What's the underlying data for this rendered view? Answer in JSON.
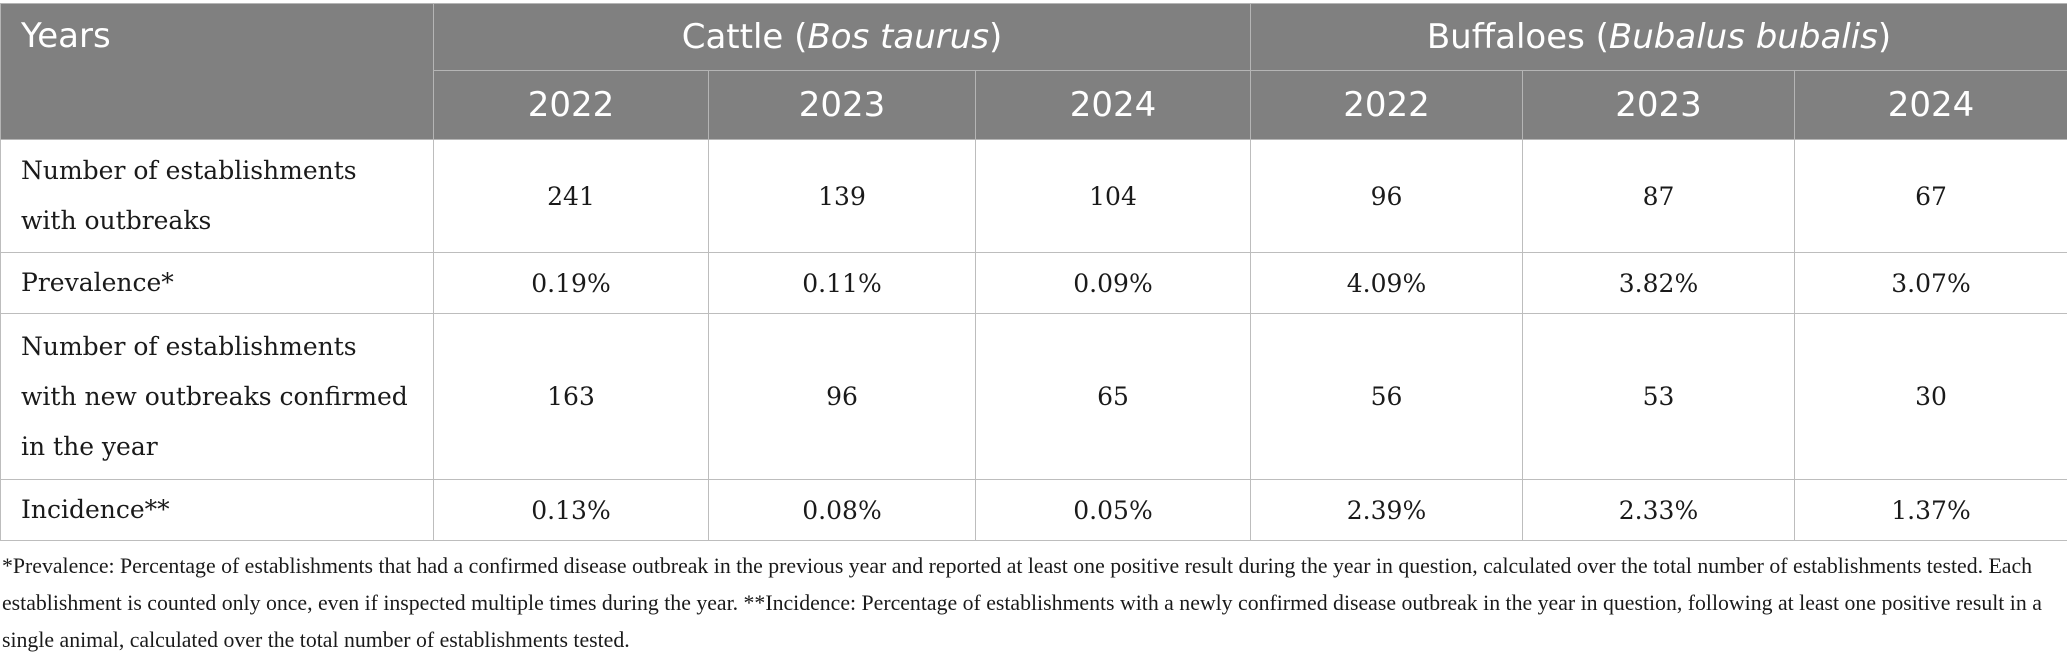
{
  "header": {
    "years_label": "Years",
    "cattle": {
      "prefix": "Cattle (",
      "latin": "Bos taurus",
      "suffix": ")"
    },
    "buffaloes": {
      "prefix": "Buffaloes (",
      "latin": "Bubalus bubalis",
      "suffix": ")"
    },
    "year_columns": [
      "2022",
      "2023",
      "2024",
      "2022",
      "2023",
      "2024"
    ]
  },
  "rows": [
    {
      "label": "Number of establishments with outbreaks",
      "values": [
        "241",
        "139",
        "104",
        "96",
        "87",
        "67"
      ]
    },
    {
      "label": "Prevalence*",
      "values": [
        "0.19%",
        "0.11%",
        "0.09%",
        "4.09%",
        "3.82%",
        "3.07%"
      ]
    },
    {
      "label": "Number of establishments with new outbreaks confirmed in the year",
      "values": [
        "163",
        "96",
        "65",
        "56",
        "53",
        "30"
      ]
    },
    {
      "label": "Incidence**",
      "values": [
        "0.13%",
        "0.08%",
        "0.05%",
        "2.39%",
        "2.33%",
        "1.37%"
      ]
    }
  ],
  "footnote": "*Prevalence: Percentage of establishments that had a confirmed disease outbreak in the previous year and reported at least one positive result during the year in question, calculated over the total number of establishments tested. Each establishment is counted only once, even if inspected multiple times during the year. **Incidence: Percentage of establishments with a newly confirmed disease outbreak in the year in question, following at least one positive result in a single animal, calculated over the total number of establishments tested.",
  "colors": {
    "header_bg": "#808080",
    "header_text": "#ffffff",
    "grid": "#bdbdbd"
  }
}
